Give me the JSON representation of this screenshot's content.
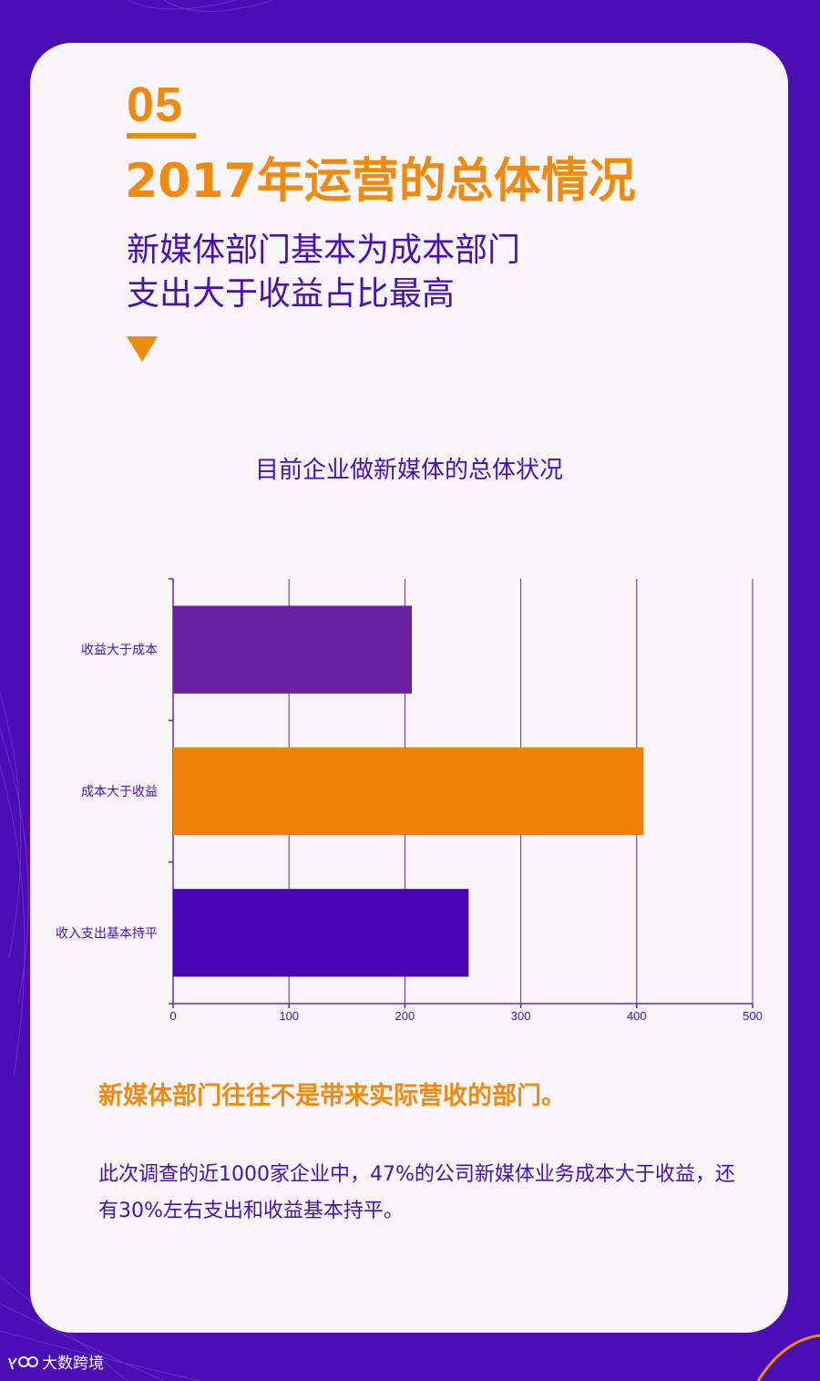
{
  "header": {
    "section_number": "05",
    "title": "2017年运营的总体情况",
    "subtitle_line1": "新媒体部门基本为成本部门",
    "subtitle_line2": "支出大于收益占比最高"
  },
  "chart_data": {
    "type": "bar",
    "orientation": "horizontal",
    "title": "目前企业做新媒体的总体状况",
    "categories": [
      "收益大于成本",
      "成本大于收益",
      "收入支出基本持平"
    ],
    "values": [
      206,
      406,
      255
    ],
    "colors": [
      "#6620a0",
      "#ef8307",
      "#4a06b4"
    ],
    "xlim": [
      0,
      500
    ],
    "xticks": [
      0,
      100,
      200,
      300,
      400,
      500
    ],
    "xlabel": "",
    "ylabel": "",
    "grid": true,
    "gridColor": "#5b2bb3"
  },
  "summary": {
    "highlight": "新媒体部门往往不是带来实际营收的部门。",
    "body": "此次调查的近1000家企业中，47%的公司新媒体业务成本大于收益，还有30%左右支出和收益基本持平。"
  },
  "footer": {
    "brand": "大数跨境"
  },
  "colors": {
    "background": "#4a0fb4",
    "card": "#f7f5f7",
    "accent": "#ef8a10",
    "text": "#4a0fb4"
  }
}
